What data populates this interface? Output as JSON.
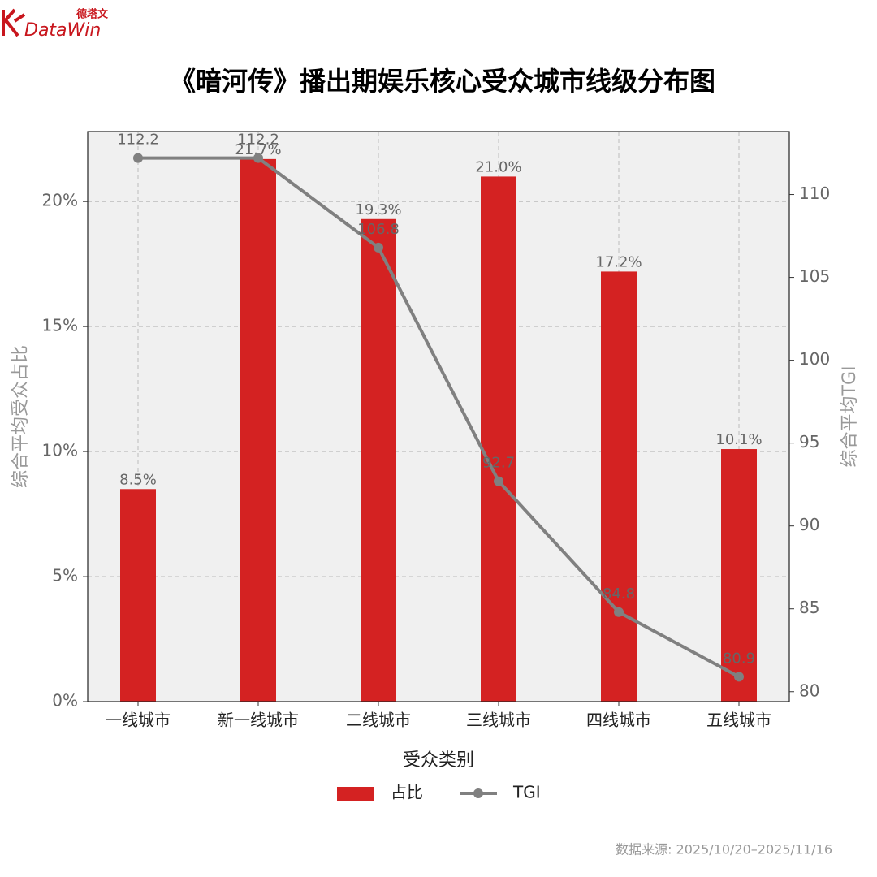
{
  "brand": {
    "cn": "德塔文",
    "en": "DataWin"
  },
  "chart_data": {
    "type": "bar_line",
    "title": "《暗河传》播出期娱乐核心受众城市线级分布图",
    "categories": [
      "一线城市",
      "新一线城市",
      "二线城市",
      "三线城市",
      "四线城市",
      "五线城市"
    ],
    "series": [
      {
        "name": "占比",
        "color": "#d42222",
        "values": [
          8.5,
          21.7,
          19.3,
          21.0,
          17.2,
          10.1
        ],
        "value_labels": [
          "8.5%",
          "21.7%",
          "19.3%",
          "21.0%",
          "17.2%",
          "10.1%"
        ]
      },
      {
        "name": "TGI",
        "color": "#808080",
        "axis": "y2",
        "values": [
          112.2,
          112.2,
          106.8,
          92.7,
          84.8,
          80.9
        ]
      }
    ],
    "xlabel": "受众类别",
    "ylabel": "综合平均受众占比",
    "y2label": "综合平均TGI",
    "ylim": [
      0,
      22.8
    ],
    "yticks": [
      {
        "value": 0,
        "label": "0%"
      },
      {
        "value": 5,
        "label": "5%"
      },
      {
        "value": 10,
        "label": "10%"
      },
      {
        "value": 15,
        "label": "15%"
      },
      {
        "value": 20,
        "label": "20%"
      }
    ],
    "y2lim": [
      79.4,
      113.8
    ],
    "y2ticks": [
      80,
      85,
      90,
      95,
      100,
      105,
      110
    ],
    "grid": true,
    "legend": "bottom",
    "source": "数据来源: 2025/10/20–2025/11/16"
  }
}
